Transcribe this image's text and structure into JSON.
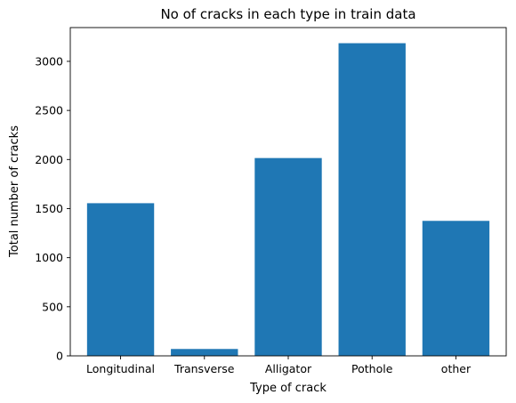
{
  "chart_data": {
    "type": "bar",
    "title": "No of cracks in each type in train data",
    "xlabel": "Type of crack",
    "ylabel": "Total number of cracks",
    "categories": [
      "Longitudinal",
      "Transverse",
      "Alligator",
      "Pothole",
      "other"
    ],
    "values": [
      1555,
      70,
      2015,
      3185,
      1375
    ],
    "ylim": [
      0,
      3344
    ],
    "yticks": [
      "0",
      "500",
      "1000",
      "1500",
      "2000",
      "2500",
      "3000"
    ],
    "grid": false,
    "bar_color": "#1f77b4"
  }
}
